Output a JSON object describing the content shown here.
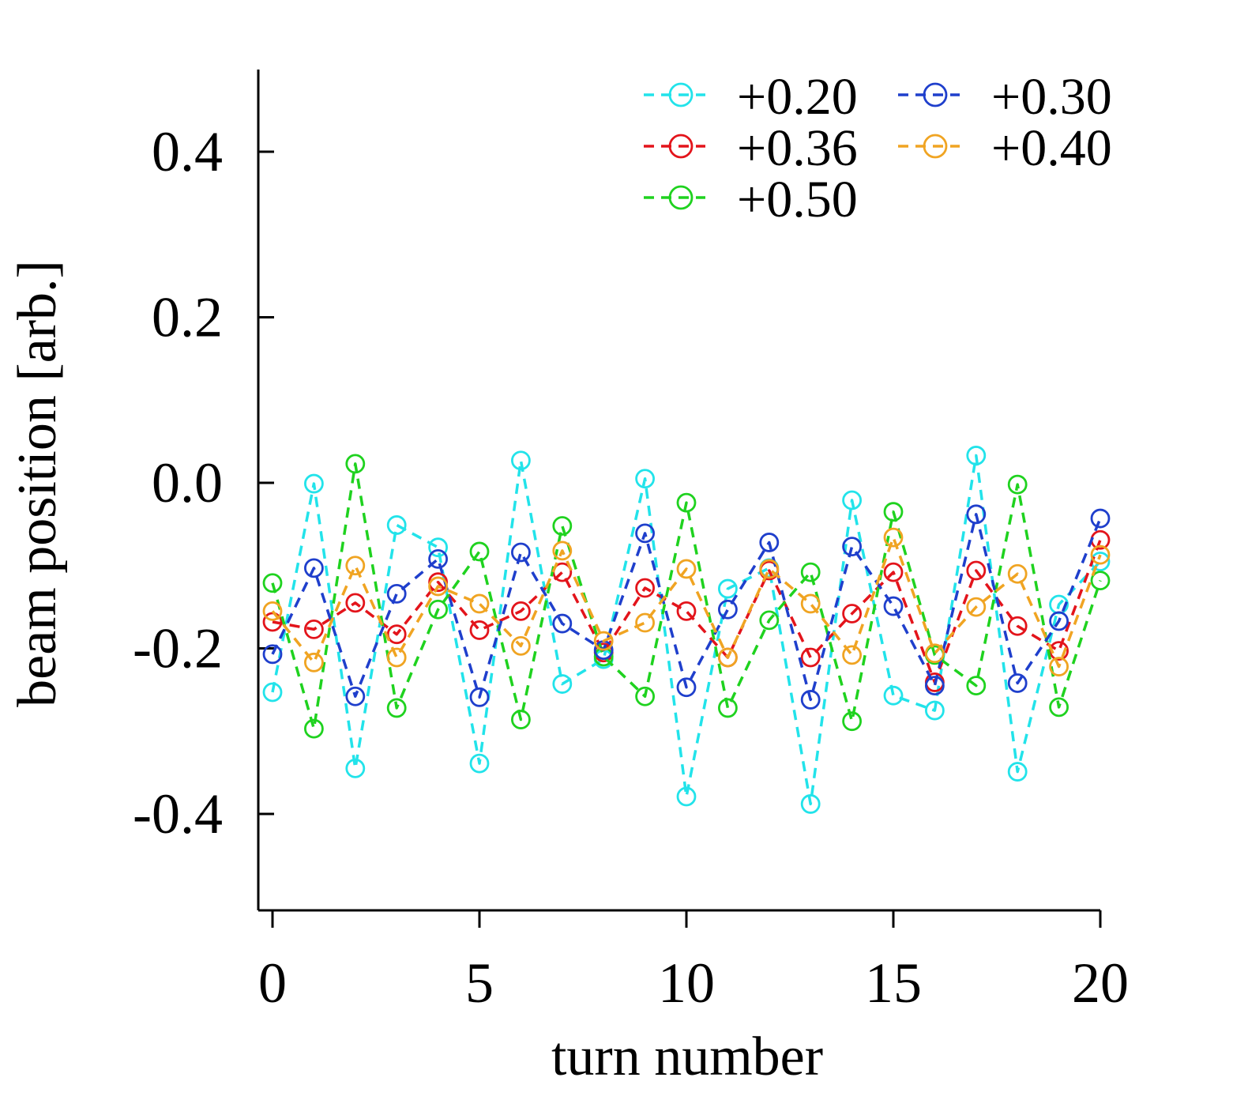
{
  "chart_data": {
    "type": "line",
    "title": "",
    "xlabel": "turn number",
    "ylabel": "beam position [arb.]",
    "xlim": [
      -0.3,
      20.3
    ],
    "ylim": [
      -0.52,
      0.5
    ],
    "xticks": [
      0,
      5,
      10,
      15,
      20
    ],
    "xtick_labels": [
      "0",
      "5",
      "10",
      "15",
      "20"
    ],
    "yticks": [
      -0.4,
      -0.2,
      0.0,
      0.2,
      0.4
    ],
    "ytick_labels": [
      "-0.4",
      "-0.2",
      "0.0",
      "0.2",
      "0.4"
    ],
    "grid": false,
    "legend_position": "top-right",
    "x": [
      0,
      1,
      2,
      3,
      4,
      5,
      6,
      7,
      8,
      9,
      10,
      11,
      12,
      13,
      14,
      15,
      16,
      17,
      18,
      19,
      20
    ],
    "series": [
      {
        "name": "+0.20",
        "color": "#22e3ea",
        "values": [
          -0.253,
          -0.001,
          -0.345,
          -0.051,
          -0.078,
          -0.339,
          0.027,
          -0.243,
          -0.213,
          0.005,
          -0.379,
          -0.128,
          -0.103,
          -0.388,
          -0.021,
          -0.257,
          -0.275,
          0.033,
          -0.349,
          -0.147,
          -0.095
        ]
      },
      {
        "name": "+0.36",
        "color": "#e3141b",
        "values": [
          -0.168,
          -0.177,
          -0.145,
          -0.183,
          -0.12,
          -0.178,
          -0.155,
          -0.108,
          -0.205,
          -0.127,
          -0.155,
          -0.211,
          -0.106,
          -0.211,
          -0.158,
          -0.108,
          -0.241,
          -0.106,
          -0.173,
          -0.203,
          -0.069
        ]
      },
      {
        "name": "+0.50",
        "color": "#1fd21f",
        "values": [
          -0.121,
          -0.297,
          0.023,
          -0.272,
          -0.153,
          -0.083,
          -0.286,
          -0.052,
          -0.21,
          -0.258,
          -0.024,
          -0.272,
          -0.166,
          -0.108,
          -0.288,
          -0.035,
          -0.208,
          -0.245,
          -0.002,
          -0.271,
          -0.118
        ]
      },
      {
        "name": "+0.30",
        "color": "#1f3fcc",
        "values": [
          -0.207,
          -0.103,
          -0.258,
          -0.134,
          -0.092,
          -0.259,
          -0.084,
          -0.17,
          -0.202,
          -0.061,
          -0.247,
          -0.153,
          -0.072,
          -0.262,
          -0.077,
          -0.149,
          -0.245,
          -0.038,
          -0.242,
          -0.167,
          -0.043
        ]
      },
      {
        "name": "+0.40",
        "color": "#f0a422",
        "values": [
          -0.155,
          -0.217,
          -0.1,
          -0.211,
          -0.125,
          -0.146,
          -0.197,
          -0.082,
          -0.191,
          -0.169,
          -0.104,
          -0.211,
          -0.104,
          -0.146,
          -0.208,
          -0.066,
          -0.206,
          -0.15,
          -0.11,
          -0.222,
          -0.087
        ]
      }
    ],
    "legend_layout": [
      [
        "+0.20",
        "+0.30"
      ],
      [
        "+0.36",
        "+0.40"
      ],
      [
        "+0.50"
      ]
    ]
  }
}
